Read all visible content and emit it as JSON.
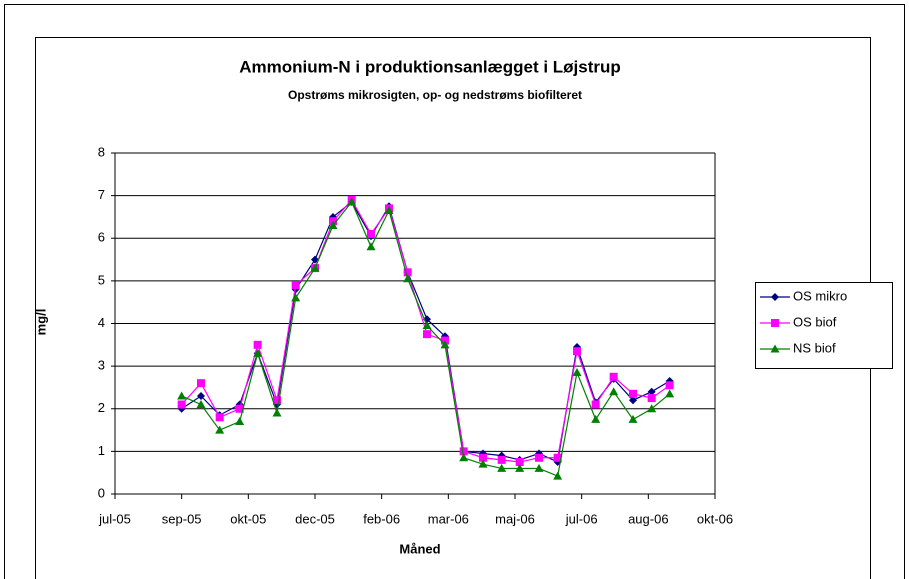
{
  "chart_data": {
    "type": "line",
    "title": "Ammonium-N i produktionsanlægget i Løjstrup",
    "subtitle": "Opstrøms mikrosigten, op- og nedstrøms biofilteret",
    "x_label": "Måned",
    "y_label": "mg/l",
    "x": [
      1.0,
      1.29,
      1.57,
      1.87,
      2.14,
      2.43,
      2.71,
      3.0,
      3.27,
      3.55,
      3.84,
      4.11,
      4.39,
      4.68,
      4.95,
      5.23,
      5.52,
      5.8,
      6.07,
      6.36,
      6.64,
      6.93,
      7.21,
      7.48,
      7.77,
      8.05,
      8.32
    ],
    "xlim": [
      0,
      9
    ],
    "xticks": [
      {
        "value": 0,
        "label": "jul-05"
      },
      {
        "value": 1,
        "label": "sep-05"
      },
      {
        "value": 2,
        "label": "okt-05"
      },
      {
        "value": 3,
        "label": "dec-05"
      },
      {
        "value": 4,
        "label": "feb-06"
      },
      {
        "value": 5,
        "label": "mar-06"
      },
      {
        "value": 6,
        "label": "maj-06"
      },
      {
        "value": 7,
        "label": "jul-06"
      },
      {
        "value": 8,
        "label": "aug-06"
      },
      {
        "value": 9,
        "label": "okt-06"
      }
    ],
    "ylim": [
      0,
      8
    ],
    "yticks": [
      0,
      1,
      2,
      3,
      4,
      5,
      6,
      7,
      8
    ],
    "grid": true,
    "legend": "right",
    "series": [
      {
        "name": "OS mikro",
        "color": "#000080",
        "marker": "diamond",
        "values": [
          2.0,
          2.3,
          1.85,
          2.1,
          3.3,
          2.1,
          4.8,
          5.5,
          6.5,
          6.85,
          6.05,
          6.75,
          5.2,
          4.1,
          3.7,
          1.0,
          0.95,
          0.9,
          0.8,
          0.95,
          0.75,
          3.45,
          2.15,
          2.7,
          2.2,
          2.4,
          2.65
        ]
      },
      {
        "name": "OS biof",
        "color": "#ff00ff",
        "marker": "square",
        "values": [
          2.1,
          2.6,
          1.8,
          2.0,
          3.5,
          2.2,
          4.9,
          5.3,
          6.4,
          6.9,
          6.1,
          6.7,
          5.2,
          3.75,
          3.6,
          1.0,
          0.85,
          0.8,
          0.75,
          0.85,
          0.85,
          3.35,
          2.1,
          2.75,
          2.35,
          2.25,
          2.55
        ]
      },
      {
        "name": "NS biof",
        "color": "#008000",
        "marker": "triangle",
        "values": [
          2.3,
          2.1,
          1.5,
          1.7,
          3.3,
          1.9,
          4.6,
          5.3,
          6.3,
          6.85,
          5.8,
          6.65,
          5.05,
          3.95,
          3.5,
          0.85,
          0.7,
          0.6,
          0.6,
          0.6,
          0.42,
          2.85,
          1.75,
          2.4,
          1.75,
          2.0,
          2.35
        ]
      }
    ]
  }
}
